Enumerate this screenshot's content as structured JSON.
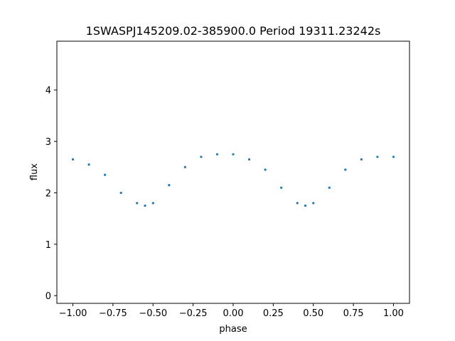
{
  "chart_data": {
    "type": "scatter",
    "title": "1SWASPJ145209.02-385900.0 Period 19311.23242s",
    "xlabel": "phase",
    "ylabel": "flux",
    "xlim": [
      -1.1,
      1.1
    ],
    "ylim": [
      -0.15,
      4.95
    ],
    "x_ticks": [
      -1.0,
      -0.75,
      -0.5,
      -0.25,
      0.0,
      0.25,
      0.5,
      0.75,
      1.0
    ],
    "x_tick_labels": [
      "−1.00",
      "−0.75",
      "−0.50",
      "−0.25",
      "0.00",
      "0.25",
      "0.50",
      "0.75",
      "1.00"
    ],
    "y_ticks": [
      0,
      1,
      2,
      3,
      4
    ],
    "y_tick_labels": [
      "0",
      "1",
      "2",
      "3",
      "4"
    ],
    "grid": false,
    "marker_color": "#1f77b4",
    "series": [
      {
        "x": [
          -1.0,
          -0.9,
          -0.8,
          -0.7,
          -0.6,
          -0.55,
          -0.5,
          -0.4,
          -0.3,
          -0.2,
          -0.1,
          0.0,
          0.1,
          0.2,
          0.3,
          0.4,
          0.45,
          0.5,
          0.6,
          0.7,
          0.8,
          0.9,
          1.0
        ],
        "y": [
          2.65,
          2.55,
          2.35,
          2.0,
          1.8,
          1.75,
          1.8,
          2.15,
          2.5,
          2.7,
          2.75,
          2.75,
          2.65,
          2.45,
          2.1,
          1.8,
          1.75,
          1.8,
          2.1,
          2.45,
          2.65,
          2.7,
          2.7
        ]
      }
    ]
  }
}
